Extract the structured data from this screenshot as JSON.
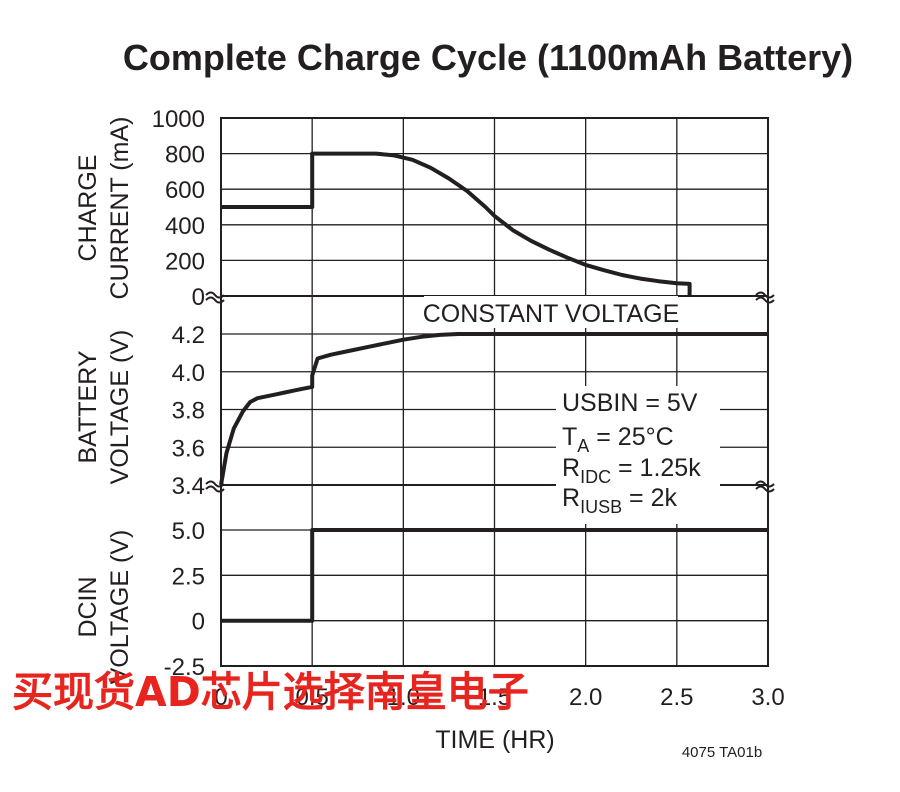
{
  "chart_data": {
    "type": "line",
    "title": "Complete Charge Cycle (1100mAh Battery)",
    "x_ticks": [
      "0",
      "0.5",
      "1.0",
      "1.5",
      "2.0",
      "2.5",
      "3.0"
    ],
    "xlabel": "TIME (HR)",
    "xlim": [
      0,
      3
    ],
    "grid": true,
    "panels": [
      {
        "id": "charge-current",
        "ylabel_lines": [
          "CHARGE",
          "CURRENT (mA)"
        ],
        "ylim": [
          0,
          1000
        ],
        "y_ticks": [
          "1000",
          "800",
          "600",
          "400",
          "200",
          "0"
        ],
        "series": [
          {
            "x": [
              0,
              0.5,
              0.5,
              0.85,
              0.95,
              1.05,
              1.15,
              1.25,
              1.35,
              1.45,
              1.5,
              1.6,
              1.7,
              1.8,
              1.9,
              2.0,
              2.1,
              2.2,
              2.3,
              2.4,
              2.5,
              2.57,
              2.57
            ],
            "y": [
              500,
              500,
              800,
              800,
              790,
              765,
              720,
              660,
              590,
              500,
              450,
              370,
              310,
              260,
              215,
              175,
              145,
              118,
              98,
              83,
              72,
              68,
              0
            ]
          }
        ]
      },
      {
        "id": "battery-voltage",
        "ylabel_lines": [
          "BATTERY",
          "VOLTAGE (V)"
        ],
        "ylim": [
          3.4,
          4.2
        ],
        "y_ticks": [
          "4.2",
          "4.0",
          "3.8",
          "3.6",
          "3.4"
        ],
        "annotation": "CONSTANT VOLTAGE",
        "series": [
          {
            "x": [
              0,
              0.03,
              0.07,
              0.12,
              0.16,
              0.2,
              0.25,
              0.3,
              0.35,
              0.4,
              0.45,
              0.5,
              0.5,
              0.53,
              0.6,
              0.7,
              0.8,
              0.9,
              1.0,
              1.1,
              1.2,
              1.3,
              1.4,
              3.0
            ],
            "y": [
              3.4,
              3.57,
              3.7,
              3.79,
              3.84,
              3.86,
              3.87,
              3.88,
              3.89,
              3.9,
              3.91,
              3.92,
              3.98,
              4.07,
              4.09,
              4.11,
              4.13,
              4.15,
              4.17,
              4.185,
              4.195,
              4.2,
              4.2,
              4.2
            ]
          }
        ],
        "conditions": {
          "usbin": "USBIN = 5V",
          "ta_main": "T",
          "ta_sub": "A",
          "ta_rest": " = 25°C",
          "ridc_main": "R",
          "ridc_sub": "IDC",
          "ridc_rest": " = 1.25k",
          "riusb_main": "R",
          "riusb_sub": "IUSB",
          "riusb_rest": " = 2k"
        }
      },
      {
        "id": "dcin-voltage",
        "ylabel_lines": [
          "DCIN",
          "VOLTAGE (V)"
        ],
        "ylim": [
          -2.5,
          5.0
        ],
        "y_ticks": [
          "5.0",
          "2.5",
          "0",
          "-2.5"
        ],
        "series": [
          {
            "x": [
              0,
              0.5,
              0.5,
              3.0
            ],
            "y": [
              0,
              0,
              5.0,
              5.0
            ]
          }
        ]
      }
    ]
  },
  "figure_code": "4075 TA01b",
  "watermark": "买现货AD芯片选择南皇电子"
}
